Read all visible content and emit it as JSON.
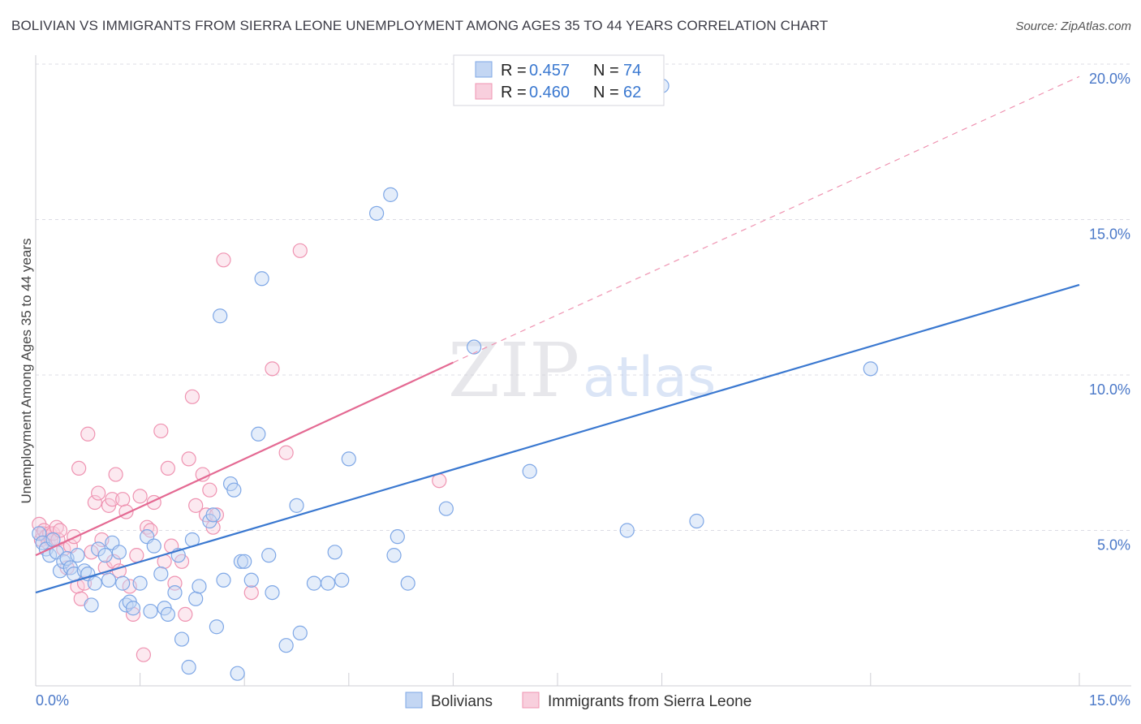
{
  "title": "BOLIVIAN VS IMMIGRANTS FROM SIERRA LEONE UNEMPLOYMENT AMONG AGES 35 TO 44 YEARS CORRELATION CHART",
  "source": "Source: ZipAtlas.com",
  "watermark": {
    "zip": "ZIP",
    "atlas": "atlas"
  },
  "colors": {
    "blue": "#7ea7e6",
    "blue_fill": "#c3d6f3",
    "blue_line": "#3a78d0",
    "pink": "#ef93b1",
    "pink_fill": "#f8cfdd",
    "pink_line": "#e46a93",
    "tick": "#4a78c8",
    "grid": "#dcdce4"
  },
  "legend": {
    "rows": [
      {
        "r_label": "R = ",
        "r_value": "0.457",
        "n_label": "N = ",
        "n_value": "74"
      },
      {
        "r_label": "R = ",
        "r_value": "0.460",
        "n_label": "N = ",
        "n_value": "62"
      }
    ]
  },
  "chart_data": {
    "type": "scatter",
    "title": "BOLIVIAN VS IMMIGRANTS FROM SIERRA LEONE UNEMPLOYMENT AMONG AGES 35 TO 44 YEARS CORRELATION CHART",
    "xlabel": "",
    "ylabel": "Unemployment Among Ages 35 to 44 years",
    "xlim": [
      0,
      15
    ],
    "ylim": [
      0,
      20
    ],
    "x_tick_labels": [
      "0.0%",
      "15.0%"
    ],
    "y_ticks": [
      5,
      10,
      15,
      20
    ],
    "y_tick_labels": [
      "5.0%",
      "10.0%",
      "15.0%",
      "20.0%"
    ],
    "grid": true,
    "legend_position": "bottom",
    "series": [
      {
        "name": "Bolivians",
        "color": "#7ea7e6",
        "trend": {
          "x": [
            0,
            15
          ],
          "y": [
            3.0,
            12.9
          ]
        },
        "points": [
          [
            0.05,
            4.9
          ],
          [
            0.1,
            4.6
          ],
          [
            0.15,
            4.4
          ],
          [
            0.2,
            4.2
          ],
          [
            0.25,
            4.7
          ],
          [
            0.3,
            4.3
          ],
          [
            0.35,
            3.7
          ],
          [
            0.4,
            4.0
          ],
          [
            0.45,
            4.1
          ],
          [
            0.5,
            3.8
          ],
          [
            0.55,
            3.6
          ],
          [
            0.6,
            4.2
          ],
          [
            0.7,
            3.7
          ],
          [
            0.75,
            3.6
          ],
          [
            0.8,
            2.6
          ],
          [
            0.85,
            3.3
          ],
          [
            0.9,
            4.4
          ],
          [
            1.0,
            4.2
          ],
          [
            1.05,
            3.4
          ],
          [
            1.1,
            4.6
          ],
          [
            1.2,
            4.3
          ],
          [
            1.25,
            3.3
          ],
          [
            1.3,
            2.6
          ],
          [
            1.35,
            2.7
          ],
          [
            1.4,
            2.5
          ],
          [
            1.5,
            3.3
          ],
          [
            1.6,
            4.8
          ],
          [
            1.65,
            2.4
          ],
          [
            1.7,
            4.5
          ],
          [
            1.8,
            3.6
          ],
          [
            1.85,
            2.5
          ],
          [
            1.9,
            2.3
          ],
          [
            2.0,
            3.0
          ],
          [
            2.05,
            4.2
          ],
          [
            2.1,
            1.5
          ],
          [
            2.2,
            0.6
          ],
          [
            2.25,
            4.7
          ],
          [
            2.3,
            2.8
          ],
          [
            2.35,
            3.2
          ],
          [
            2.5,
            5.3
          ],
          [
            2.55,
            5.5
          ],
          [
            2.6,
            1.9
          ],
          [
            2.65,
            11.9
          ],
          [
            2.7,
            3.4
          ],
          [
            2.8,
            6.5
          ],
          [
            2.85,
            6.3
          ],
          [
            2.9,
            0.4
          ],
          [
            2.95,
            4.0
          ],
          [
            3.0,
            4.0
          ],
          [
            3.1,
            3.4
          ],
          [
            3.2,
            8.1
          ],
          [
            3.25,
            13.1
          ],
          [
            3.35,
            4.2
          ],
          [
            3.4,
            3.0
          ],
          [
            3.6,
            1.3
          ],
          [
            3.75,
            5.8
          ],
          [
            3.8,
            1.7
          ],
          [
            4.0,
            3.3
          ],
          [
            4.2,
            3.3
          ],
          [
            4.3,
            4.3
          ],
          [
            4.4,
            3.4
          ],
          [
            4.5,
            7.3
          ],
          [
            4.9,
            15.2
          ],
          [
            5.1,
            15.8
          ],
          [
            5.15,
            4.2
          ],
          [
            5.2,
            4.8
          ],
          [
            5.35,
            3.3
          ],
          [
            5.9,
            5.7
          ],
          [
            6.3,
            10.9
          ],
          [
            7.1,
            6.9
          ],
          [
            8.5,
            5.0
          ],
          [
            9.5,
            5.3
          ],
          [
            9.0,
            19.3
          ],
          [
            12.0,
            10.2
          ]
        ]
      },
      {
        "name": "Immigrants from Sierra Leone",
        "color": "#ef93b1",
        "trend": {
          "x": [
            0,
            6.0
          ],
          "y": [
            4.2,
            10.4
          ]
        },
        "trend_ext": {
          "x": [
            6.0,
            15
          ],
          "y": [
            10.4,
            19.6
          ]
        },
        "points": [
          [
            0.05,
            5.2
          ],
          [
            0.08,
            4.7
          ],
          [
            0.1,
            4.9
          ],
          [
            0.12,
            5.0
          ],
          [
            0.15,
            4.8
          ],
          [
            0.18,
            4.6
          ],
          [
            0.2,
            4.9
          ],
          [
            0.22,
            4.7
          ],
          [
            0.25,
            4.9
          ],
          [
            0.3,
            5.1
          ],
          [
            0.32,
            4.7
          ],
          [
            0.35,
            5.0
          ],
          [
            0.4,
            4.4
          ],
          [
            0.45,
            3.8
          ],
          [
            0.5,
            4.5
          ],
          [
            0.55,
            4.8
          ],
          [
            0.6,
            3.2
          ],
          [
            0.62,
            7.0
          ],
          [
            0.65,
            2.8
          ],
          [
            0.7,
            3.3
          ],
          [
            0.75,
            8.1
          ],
          [
            0.8,
            4.3
          ],
          [
            0.85,
            5.9
          ],
          [
            0.9,
            6.2
          ],
          [
            0.95,
            4.7
          ],
          [
            1.0,
            3.8
          ],
          [
            1.05,
            5.8
          ],
          [
            1.1,
            6.0
          ],
          [
            1.12,
            4.0
          ],
          [
            1.15,
            6.8
          ],
          [
            1.2,
            3.7
          ],
          [
            1.25,
            6.0
          ],
          [
            1.3,
            5.6
          ],
          [
            1.35,
            3.2
          ],
          [
            1.4,
            2.3
          ],
          [
            1.45,
            4.2
          ],
          [
            1.5,
            6.1
          ],
          [
            1.55,
            1.0
          ],
          [
            1.6,
            5.1
          ],
          [
            1.65,
            5.0
          ],
          [
            1.7,
            5.9
          ],
          [
            1.8,
            8.2
          ],
          [
            1.85,
            4.0
          ],
          [
            1.9,
            7.0
          ],
          [
            1.95,
            4.5
          ],
          [
            2.0,
            3.3
          ],
          [
            2.1,
            4.0
          ],
          [
            2.15,
            2.3
          ],
          [
            2.2,
            7.3
          ],
          [
            2.25,
            9.3
          ],
          [
            2.3,
            5.8
          ],
          [
            2.4,
            6.8
          ],
          [
            2.45,
            5.5
          ],
          [
            2.5,
            6.3
          ],
          [
            2.55,
            5.1
          ],
          [
            2.6,
            5.5
          ],
          [
            2.7,
            13.7
          ],
          [
            3.1,
            3.0
          ],
          [
            3.4,
            10.2
          ],
          [
            3.6,
            7.5
          ],
          [
            3.8,
            14.0
          ],
          [
            5.8,
            6.6
          ]
        ]
      }
    ]
  }
}
